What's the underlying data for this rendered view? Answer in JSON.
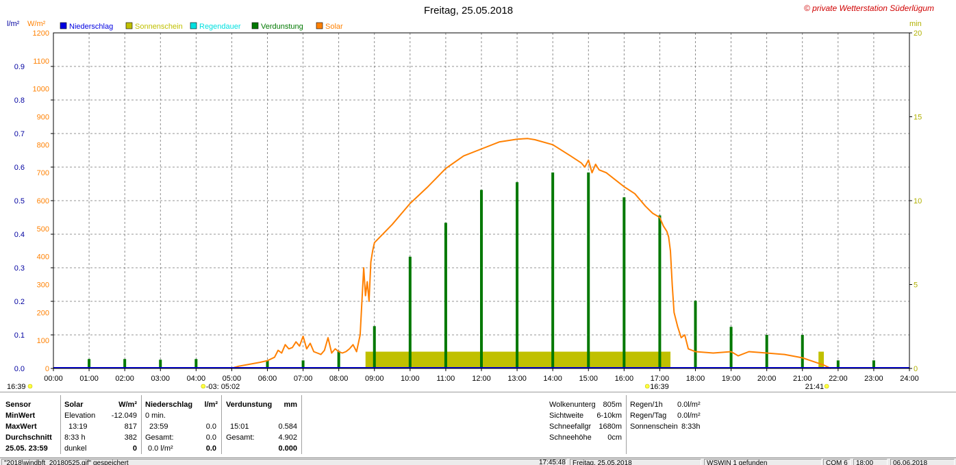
{
  "title": "Freitag, 25.05.2018",
  "copyright": "© private Wetterstation Süderlügum",
  "colors": {
    "niederschlag": "#0000e0",
    "sonnenschein": "#c0c000",
    "regendauer": "#00e0e0",
    "verdunstung": "#007800",
    "solar": "#ff8000",
    "left_axis": "#0000a0",
    "solar_axis": "#ff8000",
    "min_axis": "#b0b000"
  },
  "axis_labels": {
    "left_unit": "l/m²",
    "solar_unit": "W/m²",
    "right_unit": "min"
  },
  "chart_data": {
    "type": "line",
    "x_ticks": [
      "00:00",
      "01:00",
      "02:00",
      "03:00",
      "04:00",
      "05:00",
      "06:00",
      "07:00",
      "08:00",
      "09:00",
      "10:00",
      "11:00",
      "12:00",
      "13:00",
      "14:00",
      "15:00",
      "16:00",
      "17:00",
      "18:00",
      "19:00",
      "20:00",
      "21:00",
      "22:00",
      "23:00",
      "24:00"
    ],
    "xlim": [
      0,
      24
    ],
    "left_axis": {
      "ylim": [
        0,
        1.0
      ],
      "ticks": [
        "0.0",
        "0.1",
        "0.2",
        "0.3",
        "0.4",
        "0.5",
        "0.6",
        "0.7",
        "0.8",
        "0.9"
      ]
    },
    "solar_axis": {
      "ylim": [
        0,
        1200
      ],
      "ticks": [
        "0",
        "100",
        "200",
        "300",
        "400",
        "500",
        "600",
        "700",
        "800",
        "900",
        "1000",
        "1100",
        "1200"
      ]
    },
    "right_axis": {
      "ylim": [
        0,
        20
      ],
      "ticks": [
        "0",
        "5",
        "10",
        "15",
        "20"
      ]
    },
    "legend": [
      {
        "name": "Niederschlag",
        "key": "niederschlag"
      },
      {
        "name": "Sonnenschein",
        "key": "sonnenschein"
      },
      {
        "name": "Regendauer",
        "key": "regendauer"
      },
      {
        "name": "Verdunstung",
        "key": "verdunstung"
      },
      {
        "name": "Solar",
        "key": "solar"
      }
    ],
    "series": [
      {
        "name": "Solar",
        "axis": "solar_axis",
        "x": [
          4.97,
          5.2,
          5.5,
          5.8,
          6.0,
          6.2,
          6.3,
          6.4,
          6.5,
          6.6,
          6.7,
          6.8,
          6.9,
          7.0,
          7.1,
          7.2,
          7.3,
          7.4,
          7.5,
          7.6,
          7.7,
          7.8,
          7.9,
          8.0,
          8.1,
          8.2,
          8.3,
          8.4,
          8.5,
          8.6,
          8.7,
          8.75,
          8.8,
          8.85,
          8.9,
          8.95,
          9.0,
          9.5,
          10.0,
          10.5,
          11.0,
          11.5,
          12.0,
          12.5,
          13.0,
          13.3,
          13.5,
          14.0,
          14.5,
          14.8,
          14.9,
          15.0,
          15.1,
          15.2,
          15.3,
          15.5,
          15.8,
          16.0,
          16.3,
          16.6,
          16.8,
          17.0,
          17.1,
          17.2,
          17.25,
          17.3,
          17.35,
          17.4,
          17.5,
          17.6,
          17.7,
          17.8,
          18.0,
          18.5,
          19.0,
          19.2,
          19.5,
          20.0,
          20.5,
          21.0,
          21.3,
          21.6,
          21.8
        ],
        "y": [
          0,
          8,
          15,
          22,
          28,
          40,
          65,
          55,
          85,
          70,
          75,
          95,
          80,
          115,
          70,
          90,
          60,
          55,
          50,
          65,
          110,
          55,
          70,
          60,
          55,
          60,
          70,
          85,
          60,
          120,
          360,
          260,
          310,
          240,
          380,
          420,
          450,
          515,
          590,
          650,
          715,
          760,
          785,
          810,
          820,
          822,
          818,
          800,
          760,
          735,
          720,
          745,
          700,
          730,
          710,
          700,
          670,
          650,
          625,
          580,
          555,
          540,
          510,
          490,
          470,
          420,
          300,
          200,
          150,
          110,
          120,
          70,
          60,
          55,
          60,
          45,
          60,
          55,
          50,
          38,
          25,
          12,
          0
        ]
      },
      {
        "name": "Verdunstung",
        "axis": "left_axis",
        "bars": [
          {
            "x": 1.0,
            "v": 0.028
          },
          {
            "x": 2.0,
            "v": 0.028
          },
          {
            "x": 3.0,
            "v": 0.026
          },
          {
            "x": 4.0,
            "v": 0.028
          },
          {
            "x": 6.0,
            "v": 0.024
          },
          {
            "x": 7.0,
            "v": 0.024
          },
          {
            "x": 8.0,
            "v": 0.052
          },
          {
            "x": 9.0,
            "v": 0.126
          },
          {
            "x": 10.0,
            "v": 0.333
          },
          {
            "x": 11.0,
            "v": 0.434
          },
          {
            "x": 12.0,
            "v": 0.532
          },
          {
            "x": 13.0,
            "v": 0.555
          },
          {
            "x": 14.0,
            "v": 0.584
          },
          {
            "x": 15.0,
            "v": 0.584
          },
          {
            "x": 16.0,
            "v": 0.51
          },
          {
            "x": 17.0,
            "v": 0.456
          },
          {
            "x": 18.0,
            "v": 0.202
          },
          {
            "x": 19.0,
            "v": 0.124
          },
          {
            "x": 20.0,
            "v": 0.1
          },
          {
            "x": 21.0,
            "v": 0.1
          },
          {
            "x": 22.0,
            "v": 0.024
          },
          {
            "x": 23.0,
            "v": 0.024
          }
        ]
      },
      {
        "name": "Sonnenschein",
        "axis": "right_axis",
        "blocks": [
          {
            "x0": 8.75,
            "x1": 17.3,
            "v": 1.0
          },
          {
            "x0": 21.45,
            "x1": 21.6,
            "v": 1.0
          }
        ]
      },
      {
        "name": "Niederschlag",
        "axis": "left_axis",
        "x": [
          0,
          24
        ],
        "y": [
          0,
          0
        ]
      }
    ],
    "markers": [
      {
        "label": "16:39",
        "x": 0.0,
        "side": "left"
      },
      {
        "label": "-03: 05:02",
        "x": 4.2
      },
      {
        "label": "16:39",
        "x": 16.65
      },
      {
        "label": "21:41",
        "x": 21.68,
        "side": "left"
      }
    ]
  },
  "stats": {
    "sensor": {
      "header": "Sensor",
      "rows": [
        "MinWert",
        "MaxWert",
        "Durchschnitt",
        "25.05. 23:59"
      ]
    },
    "solar": {
      "header": "Solar",
      "unit": "W/m²",
      "rows": [
        [
          "Elevation",
          "-12.049"
        ],
        [
          "13:19",
          "817"
        ],
        [
          "8:33 h",
          "382"
        ],
        [
          "dunkel",
          "0"
        ]
      ]
    },
    "niederschlag": {
      "header": "Niederschlag",
      "unit": "l/m²",
      "rows": [
        [
          "0 min.",
          ""
        ],
        [
          "23:59",
          "0.0"
        ],
        [
          "Gesamt:",
          "0.0"
        ],
        [
          "0.0 l/m²",
          "0.0"
        ]
      ]
    },
    "verdunstung": {
      "header": "Verdunstung",
      "unit": "mm",
      "rows": [
        [
          "",
          ""
        ],
        [
          "15:01",
          "0.584"
        ],
        [
          "Gesamt:",
          "4.902"
        ],
        [
          "",
          "0.000"
        ]
      ]
    },
    "extra": [
      [
        "Wolkenunterg",
        "805m"
      ],
      [
        "Sichtweite",
        "6-10km"
      ],
      [
        "Schneefallgr",
        "1680m"
      ],
      [
        "Schneehöhe",
        "0cm"
      ]
    ],
    "rain": [
      [
        "Regen/1h",
        "0.0l/m²"
      ],
      [
        "Regen/Tag",
        "0.0l/m²"
      ],
      [
        "Sonnenschein",
        "8:33h"
      ]
    ]
  },
  "statusbar": [
    "\"2018\\windbft_20180525.gif\" gespeichert",
    "17:45:48",
    "Freitag, 25.05.2018",
    "WSWIN 1 gefunden",
    "COM 6",
    "18:00",
    "06.06.2018"
  ]
}
